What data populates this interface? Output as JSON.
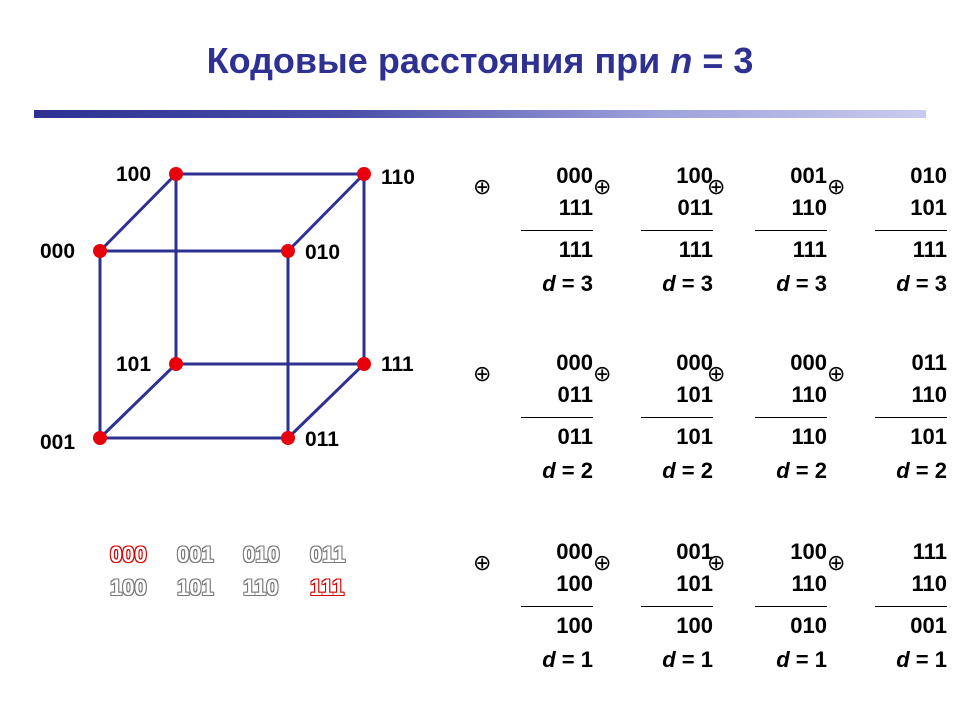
{
  "title": {
    "text": "Кодовые расстояния при",
    "variable": "n",
    "suffix": "= 3"
  },
  "colors": {
    "title": "#2e3192",
    "edge": "#2e3192",
    "vertex": "#e8000b",
    "highlight": "#d40000"
  },
  "cube": {
    "vertices": {
      "v000": "000",
      "v100": "100",
      "v110": "110",
      "v010": "010",
      "v001": "001",
      "v101": "101",
      "v111": "111",
      "v011": "011"
    }
  },
  "binary_list": {
    "row1": [
      "000",
      "001",
      "010",
      "011"
    ],
    "row2": [
      "100",
      "101",
      "110",
      "111"
    ]
  },
  "xor_symbol": "⊕",
  "distance_label": "d",
  "calcs": [
    {
      "a": "000",
      "b": "111",
      "r": "111",
      "d": "= 3"
    },
    {
      "a": "100",
      "b": "011",
      "r": "111",
      "d": "= 3"
    },
    {
      "a": "001",
      "b": "110",
      "r": "111",
      "d": "= 3"
    },
    {
      "a": "010",
      "b": "101",
      "r": "111",
      "d": "= 3"
    },
    {
      "a": "000",
      "b": "011",
      "r": "011",
      "d": "= 2"
    },
    {
      "a": "000",
      "b": "101",
      "r": "101",
      "d": "= 2"
    },
    {
      "a": "000",
      "b": "110",
      "r": "110",
      "d": "= 2"
    },
    {
      "a": "011",
      "b": "110",
      "r": "101",
      "d": "= 2"
    },
    {
      "a": "000",
      "b": "100",
      "r": "100",
      "d": "= 1"
    },
    {
      "a": "001",
      "b": "101",
      "r": "100",
      "d": "= 1"
    },
    {
      "a": "100",
      "b": "110",
      "r": "010",
      "d": "= 1"
    },
    {
      "a": "111",
      "b": "110",
      "r": "001",
      "d": "= 1"
    }
  ]
}
